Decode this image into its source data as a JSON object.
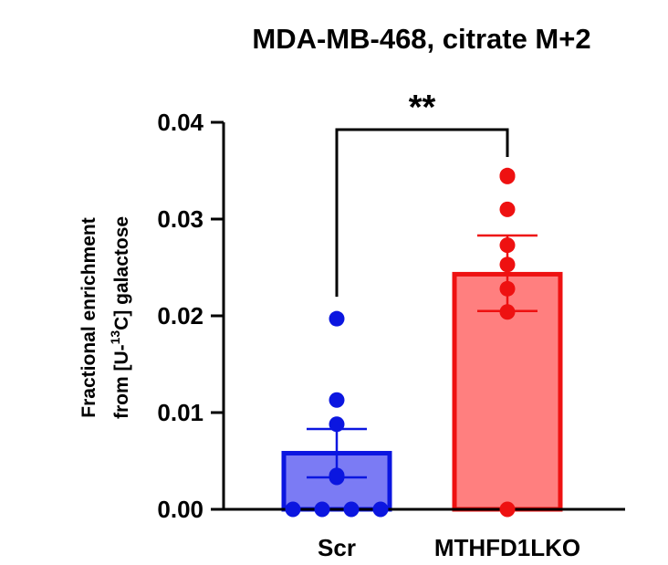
{
  "chart_data": {
    "type": "bar",
    "title": "MDA-MB-468, citrate M+2",
    "ylabel_line1": "Fractional enrichment",
    "ylabel_line2_pre": "from [U-",
    "ylabel_line2_sup": "13",
    "ylabel_line2_post": "C] galactose",
    "xlabel": "",
    "ylim": [
      0,
      0.04
    ],
    "yticks": [
      "0.00",
      "0.01",
      "0.02",
      "0.03",
      "0.04"
    ],
    "ytick_values": [
      0,
      0.01,
      0.02,
      0.03,
      0.04
    ],
    "grid": false,
    "categories": [
      "Scr",
      "MTHFD1LKO"
    ],
    "series": [
      {
        "category": "Scr",
        "mean": 0.0058,
        "sem_low": 0.0033,
        "sem_high": 0.0083,
        "points": [
          0.0197,
          0.0113,
          0.0088,
          0.0035,
          0.0033,
          0.0,
          0.0,
          0.0,
          0.0
        ],
        "fill": "#7b7bf4",
        "stroke": "#0b16e0"
      },
      {
        "category": "MTHFD1LKO",
        "mean": 0.0243,
        "sem_low": 0.0205,
        "sem_high": 0.0283,
        "points": [
          0.0344,
          0.0345,
          0.031,
          0.0273,
          0.0253,
          0.0228,
          0.0204,
          0.0
        ],
        "fill": "#ff7f7f",
        "stroke": "#ee1111"
      }
    ],
    "significance": {
      "label": "**",
      "between": [
        "Scr",
        "MTHFD1LKO"
      ]
    }
  }
}
